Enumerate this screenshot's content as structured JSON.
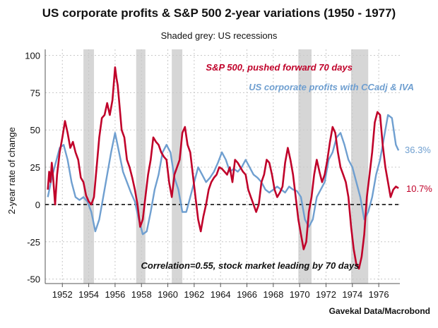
{
  "chart_data": {
    "type": "line",
    "title": "US corporate profits & S&P 500 2-year variations (1950 - 1977)",
    "subtitle": "Shaded grey: US recessions",
    "ylabel": "2-year rate of change",
    "source": "Gavekal Data/Macrobond",
    "annotation": "Correlation=0.55, stock market leading by 70 days",
    "xlim": [
      1950.7,
      1977.6
    ],
    "ylim": [
      -53,
      104
    ],
    "x_ticks": [
      1952,
      1954,
      1956,
      1958,
      1960,
      1962,
      1964,
      1966,
      1968,
      1970,
      1972,
      1974,
      1976
    ],
    "y_ticks": [
      -50,
      -25,
      0,
      25,
      50,
      75,
      100
    ],
    "zero_line": "dashed",
    "grid": true,
    "legend_placement": "top-right",
    "recessions": [
      [
        1953.6,
        1954.4
      ],
      [
        1957.6,
        1958.3
      ],
      [
        1960.3,
        1961.1
      ],
      [
        1969.9,
        1970.9
      ],
      [
        1973.9,
        1975.2
      ]
    ],
    "series": [
      {
        "name": "S&P 500, pushed forward 70 days",
        "color": "#c0022a",
        "end_label": "10.7%",
        "x": [
          1950.9,
          1951.0,
          1951.1,
          1951.2,
          1951.3,
          1951.45,
          1951.6,
          1951.8,
          1952.0,
          1952.2,
          1952.4,
          1952.6,
          1952.8,
          1953.0,
          1953.2,
          1953.4,
          1953.6,
          1953.8,
          1954.0,
          1954.2,
          1954.4,
          1954.6,
          1954.8,
          1955.0,
          1955.2,
          1955.4,
          1955.6,
          1955.8,
          1956.0,
          1956.1,
          1956.2,
          1956.3,
          1956.5,
          1956.7,
          1956.9,
          1957.1,
          1957.3,
          1957.5,
          1957.7,
          1957.9,
          1958.1,
          1958.3,
          1958.5,
          1958.7,
          1958.9,
          1959.1,
          1959.3,
          1959.5,
          1959.7,
          1959.9,
          1960.1,
          1960.3,
          1960.5,
          1960.7,
          1960.9,
          1961.1,
          1961.3,
          1961.5,
          1961.7,
          1961.9,
          1962.1,
          1962.3,
          1962.5,
          1962.7,
          1962.9,
          1963.1,
          1963.3,
          1963.5,
          1963.7,
          1963.9,
          1964.1,
          1964.3,
          1964.5,
          1964.7,
          1964.9,
          1965.1,
          1965.3,
          1965.5,
          1965.7,
          1965.9,
          1966.1,
          1966.3,
          1966.5,
          1966.7,
          1966.9,
          1967.1,
          1967.3,
          1967.5,
          1967.7,
          1967.9,
          1968.1,
          1968.3,
          1968.5,
          1968.7,
          1968.9,
          1969.1,
          1969.3,
          1969.5,
          1969.7,
          1969.9,
          1970.1,
          1970.3,
          1970.5,
          1970.7,
          1970.9,
          1971.1,
          1971.3,
          1971.5,
          1971.7,
          1971.9,
          1972.1,
          1972.3,
          1972.5,
          1972.7,
          1972.9,
          1973.1,
          1973.3,
          1973.5,
          1973.7,
          1973.9,
          1974.1,
          1974.3,
          1974.5,
          1974.7,
          1974.9,
          1975.1,
          1975.3,
          1975.5,
          1975.7,
          1975.9,
          1976.1,
          1976.3,
          1976.5,
          1976.7,
          1976.9,
          1977.1,
          1977.3,
          1977.5
        ],
        "y": [
          10,
          22,
          15,
          28,
          18,
          0,
          20,
          35,
          45,
          56,
          48,
          38,
          42,
          35,
          30,
          18,
          15,
          6,
          2,
          0,
          5,
          25,
          45,
          58,
          60,
          68,
          60,
          70,
          92,
          85,
          80,
          70,
          50,
          45,
          30,
          25,
          18,
          10,
          0,
          -15,
          -10,
          5,
          20,
          30,
          45,
          42,
          40,
          35,
          32,
          30,
          15,
          5,
          20,
          25,
          30,
          48,
          52,
          40,
          35,
          20,
          5,
          -10,
          -18,
          -8,
          0,
          10,
          15,
          18,
          20,
          25,
          24,
          22,
          20,
          25,
          15,
          30,
          28,
          25,
          22,
          20,
          10,
          5,
          0,
          -5,
          0,
          15,
          20,
          30,
          28,
          20,
          10,
          5,
          8,
          12,
          28,
          38,
          30,
          20,
          5,
          -10,
          -20,
          -30,
          -25,
          -5,
          5,
          20,
          30,
          22,
          15,
          20,
          30,
          42,
          52,
          48,
          35,
          25,
          20,
          15,
          5,
          -15,
          -30,
          -40,
          -43,
          -35,
          -20,
          5,
          20,
          35,
          55,
          62,
          60,
          40,
          25,
          15,
          5,
          10,
          12,
          11
        ]
      },
      {
        "name": "US corporate profits with CCadj & IVA",
        "color": "#6f9fd0",
        "end_label": "36.3%",
        "x": [
          1950.9,
          1951.2,
          1951.5,
          1951.8,
          1952.1,
          1952.4,
          1952.7,
          1953.0,
          1953.3,
          1953.6,
          1953.9,
          1954.2,
          1954.5,
          1954.8,
          1955.1,
          1955.4,
          1955.7,
          1956.0,
          1956.3,
          1956.6,
          1956.9,
          1957.2,
          1957.5,
          1957.8,
          1958.1,
          1958.4,
          1958.7,
          1959.0,
          1959.3,
          1959.6,
          1959.9,
          1960.2,
          1960.5,
          1960.8,
          1961.1,
          1961.4,
          1961.7,
          1962.0,
          1962.3,
          1962.6,
          1962.9,
          1963.2,
          1963.5,
          1963.8,
          1964.1,
          1964.4,
          1964.7,
          1965.0,
          1965.3,
          1965.6,
          1965.9,
          1966.2,
          1966.5,
          1966.8,
          1967.1,
          1967.4,
          1967.7,
          1968.0,
          1968.3,
          1968.6,
          1968.9,
          1969.2,
          1969.5,
          1969.8,
          1970.1,
          1970.4,
          1970.7,
          1971.0,
          1971.3,
          1971.6,
          1971.9,
          1972.2,
          1972.5,
          1972.8,
          1973.1,
          1973.4,
          1973.7,
          1974.0,
          1974.3,
          1974.6,
          1974.9,
          1975.2,
          1975.5,
          1975.8,
          1976.1,
          1976.4,
          1976.7,
          1977.0,
          1977.3,
          1977.5
        ],
        "y": [
          5,
          18,
          28,
          38,
          40,
          30,
          15,
          5,
          3,
          5,
          2,
          -5,
          -18,
          -10,
          5,
          20,
          35,
          48,
          35,
          22,
          15,
          8,
          2,
          -10,
          -20,
          -18,
          -5,
          10,
          20,
          35,
          40,
          35,
          18,
          10,
          -5,
          -5,
          5,
          15,
          25,
          20,
          15,
          18,
          22,
          28,
          35,
          30,
          22,
          24,
          22,
          25,
          30,
          25,
          20,
          18,
          15,
          10,
          8,
          10,
          12,
          10,
          8,
          12,
          10,
          9,
          5,
          -10,
          -15,
          -10,
          5,
          10,
          15,
          30,
          35,
          45,
          48,
          40,
          30,
          25,
          15,
          5,
          -10,
          -5,
          5,
          20,
          30,
          45,
          60,
          58,
          40,
          36.3
        ]
      }
    ]
  }
}
